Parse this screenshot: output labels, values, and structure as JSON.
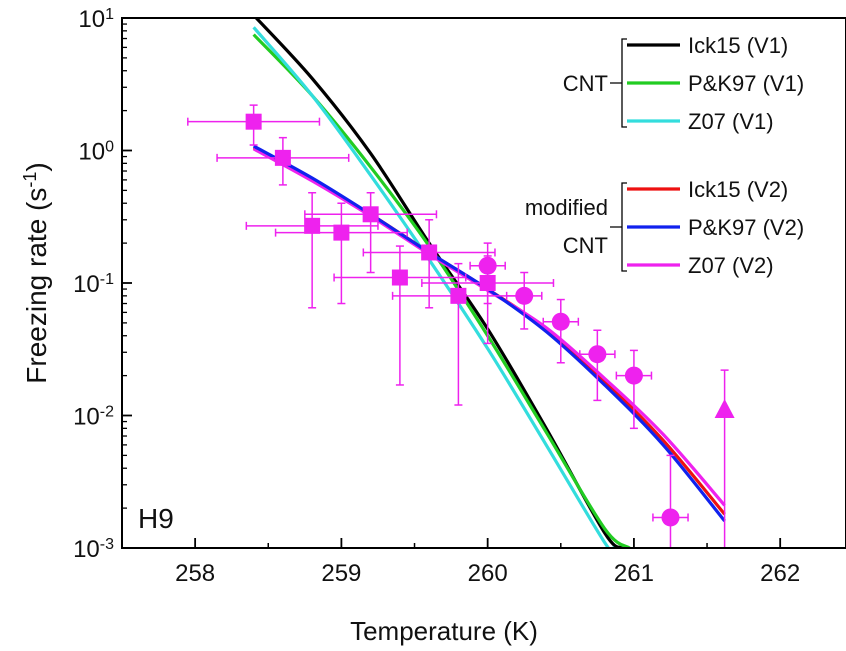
{
  "chart_data": {
    "type": "scatter",
    "panel_label": "H9",
    "xlabel": "Temperature (K)",
    "ylabel": {
      "main": "Freezing rate (s",
      "sup": "-1",
      "tail": ")"
    },
    "xlim": [
      257.5,
      262.45
    ],
    "ylim": [
      0.001,
      10
    ],
    "yscale": "log",
    "xticks": [
      258,
      259,
      260,
      261,
      262
    ],
    "xtick_labels": [
      "258",
      "259",
      "260",
      "261",
      "262"
    ],
    "yticks": [
      0.001,
      0.01,
      0.1,
      1,
      10
    ],
    "ytick_labels": [
      {
        "base": "10",
        "exp": "-3"
      },
      {
        "base": "10",
        "exp": "-2"
      },
      {
        "base": "10",
        "exp": "-1"
      },
      {
        "base": "10",
        "exp": "0"
      },
      {
        "base": "10",
        "exp": "1"
      }
    ],
    "legend": {
      "placement": "top-right",
      "groups": [
        {
          "label_lines": [
            "CNT"
          ],
          "entries": [
            "Ick15 (V1)",
            "P&K97 (V1)",
            "Z07 (V1)"
          ]
        },
        {
          "label_lines": [
            "modified",
            "CNT"
          ],
          "entries": [
            "Ick15 (V2)",
            "P&K97 (V2)",
            "Z07 (V2)"
          ]
        }
      ]
    },
    "series": [
      {
        "name": "Ick15 (V1)",
        "color": "#000000",
        "x": [
          258.4,
          258.8,
          259.2,
          259.6,
          260.0,
          260.4,
          260.8,
          260.92
        ],
        "y": [
          10.5,
          3.5,
          0.95,
          0.2,
          0.045,
          0.008,
          0.0013,
          0.001
        ]
      },
      {
        "name": "P&K97 (V1)",
        "color": "#22cc22",
        "x": [
          258.4,
          258.8,
          259.2,
          259.6,
          260.0,
          260.4,
          260.8,
          260.97
        ],
        "y": [
          7.5,
          2.6,
          0.75,
          0.19,
          0.04,
          0.0075,
          0.0014,
          0.001
        ]
      },
      {
        "name": "Z07 (V1)",
        "color": "#33dddd",
        "x": [
          258.4,
          258.8,
          259.2,
          259.6,
          260.0,
          260.4,
          260.8,
          260.86
        ],
        "y": [
          8.5,
          2.6,
          0.65,
          0.15,
          0.032,
          0.006,
          0.0011,
          0.001
        ]
      },
      {
        "name": "Ick15 (V2)",
        "color": "#ee1111",
        "x": [
          258.4,
          258.8,
          259.2,
          259.6,
          260.0,
          260.4,
          260.8,
          261.2,
          261.62
        ],
        "y": [
          1.05,
          0.6,
          0.33,
          0.17,
          0.09,
          0.045,
          0.018,
          0.0065,
          0.0018
        ]
      },
      {
        "name": "P&K97 (V2)",
        "color": "#1122ee",
        "x": [
          258.4,
          258.8,
          259.2,
          259.6,
          260.0,
          260.4,
          260.8,
          261.2,
          261.62
        ],
        "y": [
          1.08,
          0.62,
          0.33,
          0.17,
          0.09,
          0.043,
          0.017,
          0.006,
          0.0016
        ]
      },
      {
        "name": "Z07 (V2)",
        "color": "#ee22ee",
        "x": [
          258.4,
          258.8,
          259.2,
          259.6,
          260.0,
          260.4,
          260.8,
          261.2,
          261.62
        ],
        "y": [
          1.03,
          0.59,
          0.32,
          0.165,
          0.088,
          0.046,
          0.019,
          0.0072,
          0.0021
        ]
      }
    ],
    "measurements": {
      "color": "#ee22ee",
      "squares": [
        {
          "x": 258.4,
          "y": 1.65,
          "xerr": [
            0.45,
            0.45
          ],
          "yerr": [
            1.1,
            2.2
          ]
        },
        {
          "x": 258.6,
          "y": 0.88,
          "xerr": [
            0.45,
            0.45
          ],
          "yerr": [
            0.55,
            1.25
          ]
        },
        {
          "x": 258.8,
          "y": 0.27,
          "xerr": [
            0.45,
            0.45
          ],
          "yerr": [
            0.065,
            0.48
          ]
        },
        {
          "x": 259.0,
          "y": 0.24,
          "xerr": [
            0.45,
            0.45
          ],
          "yerr": [
            0.07,
            0.4
          ]
        },
        {
          "x": 259.2,
          "y": 0.33,
          "xerr": [
            0.45,
            0.45
          ],
          "yerr": [
            0.12,
            0.48
          ]
        },
        {
          "x": 259.4,
          "y": 0.11,
          "xerr": [
            0.45,
            0.45
          ],
          "yerr": [
            0.017,
            0.19
          ]
        },
        {
          "x": 259.6,
          "y": 0.17,
          "xerr": [
            0.45,
            0.45
          ],
          "yerr": [
            0.065,
            0.3
          ]
        },
        {
          "x": 259.8,
          "y": 0.08,
          "xerr": [
            0.45,
            0.45
          ],
          "yerr": [
            0.012,
            0.14
          ]
        },
        {
          "x": 260.0,
          "y": 0.1,
          "xerr": [
            0.45,
            0.45
          ],
          "yerr": [
            0.035,
            0.16
          ]
        }
      ],
      "circles": [
        {
          "x": 260.0,
          "y": 0.135,
          "xerr": [
            0.12,
            0.12
          ],
          "yerr": [
            0.07,
            0.2
          ]
        },
        {
          "x": 260.25,
          "y": 0.08,
          "xerr": [
            0.12,
            0.12
          ],
          "yerr": [
            0.045,
            0.12
          ]
        },
        {
          "x": 260.5,
          "y": 0.051,
          "xerr": [
            0.12,
            0.12
          ],
          "yerr": [
            0.025,
            0.075
          ]
        },
        {
          "x": 260.75,
          "y": 0.029,
          "xerr": [
            0.12,
            0.12
          ],
          "yerr": [
            0.013,
            0.044
          ]
        },
        {
          "x": 261.0,
          "y": 0.02,
          "xerr": [
            0.12,
            0.12
          ],
          "yerr": [
            0.008,
            0.031
          ]
        },
        {
          "x": 261.25,
          "y": 0.0017,
          "xerr": [
            0.12,
            0.12
          ],
          "yerr": [
            0.0009,
            0.005
          ]
        }
      ],
      "triangles": [
        {
          "x": 261.62,
          "y": 0.011,
          "xerr": [
            0,
            0
          ],
          "yerr": [
            0.0009,
            0.022
          ]
        }
      ]
    }
  }
}
